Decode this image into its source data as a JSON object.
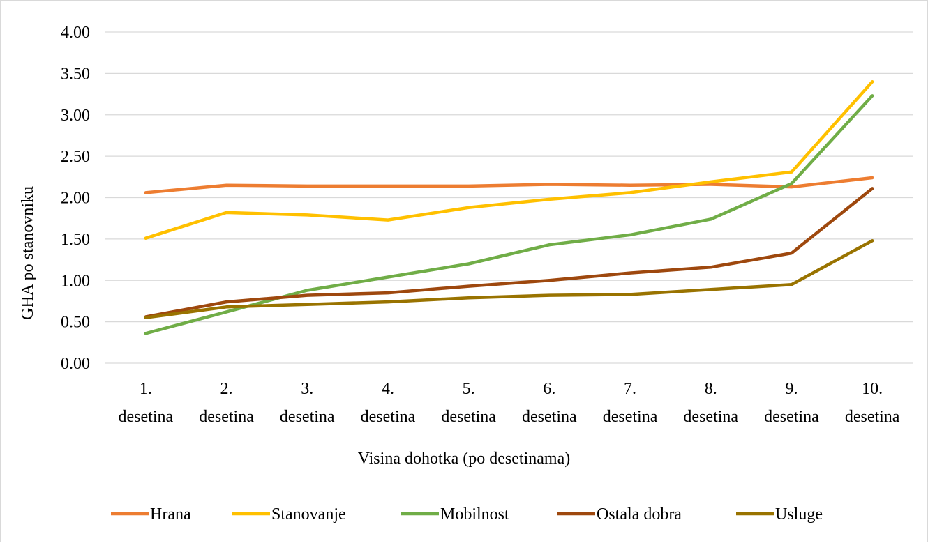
{
  "chart_data": {
    "type": "line",
    "title": "",
    "xlabel": "Visina dohotka (po desetinama)",
    "ylabel": "GHA po stanovniku",
    "ylim": [
      0,
      4
    ],
    "yticks": [
      "0.00",
      "0.50",
      "1.00",
      "1.50",
      "2.00",
      "2.50",
      "3.00",
      "3.50",
      "4.00"
    ],
    "grid": true,
    "legend_position": "bottom",
    "categories": [
      [
        "1.",
        "desetina"
      ],
      [
        "2.",
        "desetina"
      ],
      [
        "3.",
        "desetina"
      ],
      [
        "4.",
        "desetina"
      ],
      [
        "5.",
        "desetina"
      ],
      [
        "6.",
        "desetina"
      ],
      [
        "7.",
        "desetina"
      ],
      [
        "8.",
        "desetina"
      ],
      [
        "9.",
        "desetina"
      ],
      [
        "10.",
        "desetina"
      ]
    ],
    "series": [
      {
        "name": "Hrana",
        "color": "#ED7D31",
        "values": [
          2.06,
          2.15,
          2.14,
          2.14,
          2.14,
          2.16,
          2.15,
          2.16,
          2.13,
          2.24
        ]
      },
      {
        "name": "Stanovanje",
        "color": "#FFC000",
        "values": [
          1.51,
          1.82,
          1.79,
          1.73,
          1.88,
          1.98,
          2.06,
          2.19,
          2.31,
          3.4
        ]
      },
      {
        "name": "Mobilnost",
        "color": "#70AD47",
        "values": [
          0.36,
          0.62,
          0.88,
          1.04,
          1.2,
          1.43,
          1.55,
          1.74,
          2.17,
          3.23
        ]
      },
      {
        "name": "Ostala dobra",
        "color": "#9E480E",
        "values": [
          0.56,
          0.74,
          0.82,
          0.85,
          0.93,
          1.0,
          1.09,
          1.16,
          1.33,
          2.11
        ]
      },
      {
        "name": "Usluge",
        "color": "#997300",
        "values": [
          0.55,
          0.68,
          0.71,
          0.74,
          0.79,
          0.82,
          0.83,
          0.89,
          0.95,
          1.48
        ]
      }
    ]
  }
}
